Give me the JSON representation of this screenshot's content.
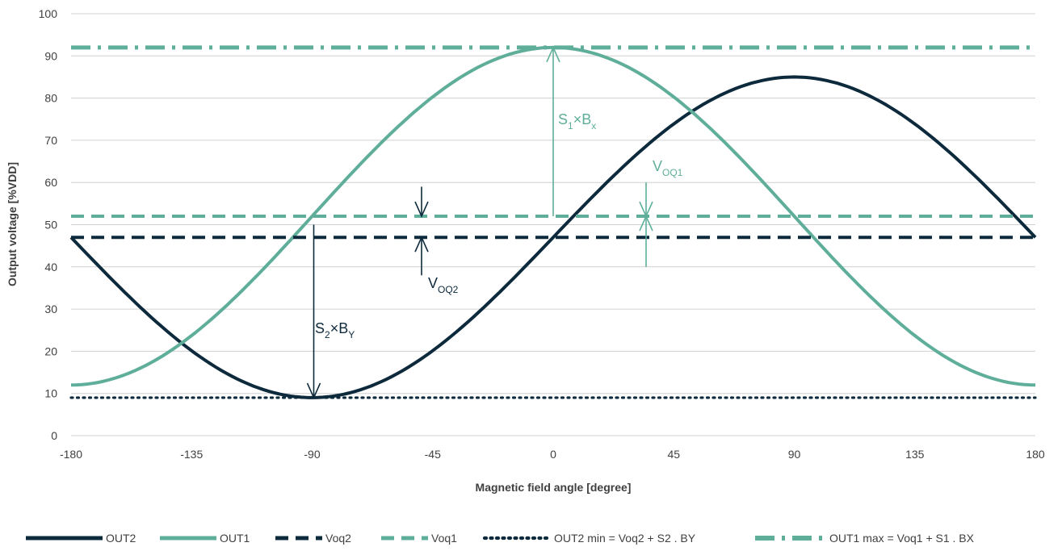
{
  "colors": {
    "dark": "#0d2a3d",
    "teal": "#5fae9a",
    "grid": "#d0d0d0",
    "text": "#404040"
  },
  "chart_data": {
    "type": "line",
    "xlabel": "Magnetic field angle [degree]",
    "ylabel": "Output voltage [%VDD]",
    "xlim": [
      -180,
      180
    ],
    "ylim": [
      0,
      100
    ],
    "x_ticks": [
      -180,
      -135,
      -90,
      -45,
      0,
      45,
      90,
      135,
      180
    ],
    "y_ticks": [
      0,
      10,
      20,
      30,
      40,
      50,
      60,
      70,
      80,
      90,
      100
    ],
    "grid": "horizontal",
    "legend_position": "bottom",
    "series": [
      {
        "name": "OUT2",
        "kind": "sine",
        "offset": 47,
        "amplitude": 38,
        "phase": "sin",
        "color": "dark",
        "style": "solid"
      },
      {
        "name": "OUT1",
        "kind": "sine",
        "offset": 52,
        "amplitude": 40,
        "phase": "cos",
        "color": "teal",
        "style": "solid"
      },
      {
        "name": "Voq2",
        "kind": "hline",
        "value": 47,
        "color": "dark",
        "style": "dashed"
      },
      {
        "name": "Voq1",
        "kind": "hline",
        "value": 52,
        "color": "teal",
        "style": "dashed"
      },
      {
        "name": "OUT2 min = Voq2 + S2 . BY",
        "kind": "hline",
        "value": 9,
        "color": "dark",
        "style": "dotted"
      },
      {
        "name": "OUT1 max = Voq1 + S1 . BX",
        "kind": "hline",
        "value": 92,
        "color": "teal",
        "style": "dashdot"
      }
    ],
    "annotations": [
      {
        "text": "S",
        "sub": "1",
        "text2": "×B",
        "sub2": "x",
        "color": "teal"
      },
      {
        "text": "V",
        "sub": "OQ1",
        "color": "teal"
      },
      {
        "text": "V",
        "sub": "OQ2",
        "color": "dark"
      },
      {
        "text": "S",
        "sub": "2",
        "text2": "×B",
        "sub2": "Y",
        "color": "dark"
      }
    ]
  }
}
